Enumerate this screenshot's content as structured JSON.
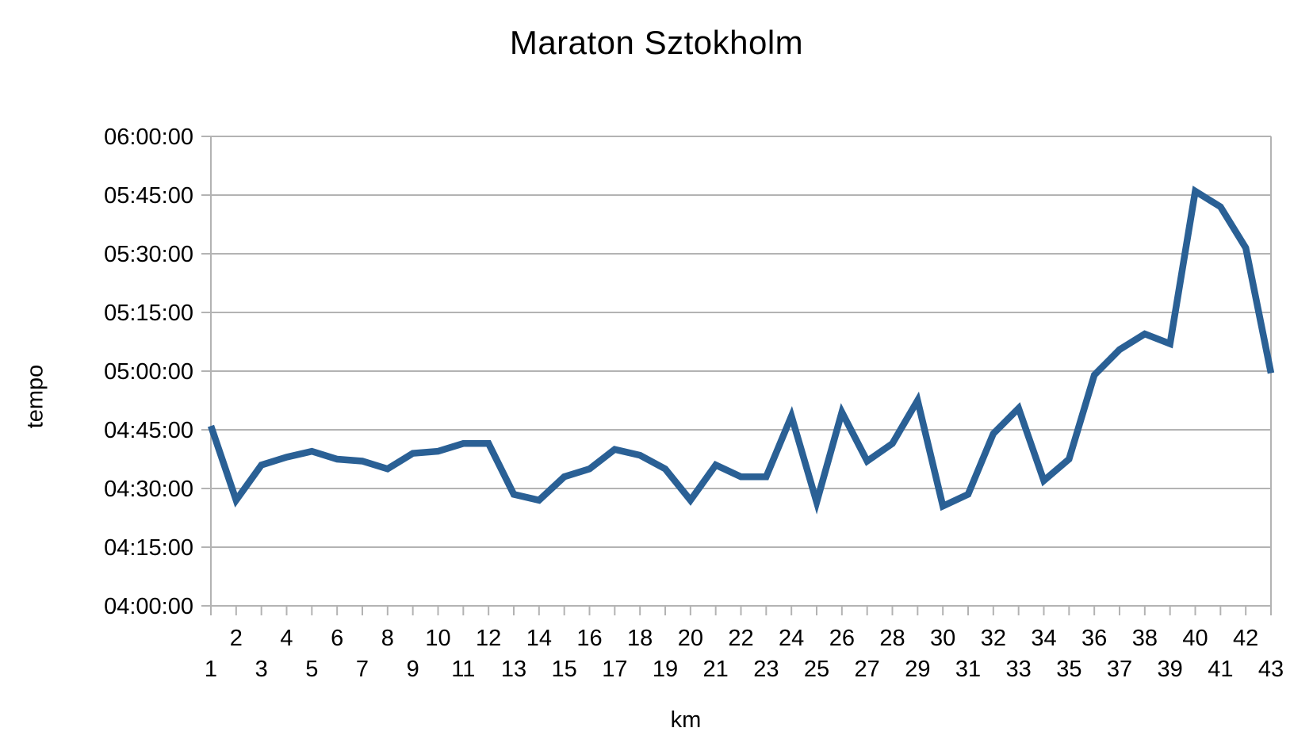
{
  "chart_data": {
    "type": "line",
    "title": "Maraton Sztokholm",
    "xlabel": "km",
    "ylabel": "tempo",
    "series": [
      {
        "name": "tempo",
        "x": [
          1,
          2,
          3,
          4,
          5,
          6,
          7,
          8,
          9,
          10,
          11,
          12,
          13,
          14,
          15,
          16,
          17,
          18,
          19,
          20,
          21,
          22,
          23,
          24,
          25,
          26,
          27,
          28,
          29,
          30,
          31,
          32,
          33,
          34,
          35,
          36,
          37,
          38,
          39,
          40,
          41,
          42,
          43
        ],
        "values": [
          "04:46:00",
          "04:27:00",
          "04:36:00",
          "04:38:00",
          "04:39:30",
          "04:37:30",
          "04:37:00",
          "04:35:00",
          "04:39:00",
          "04:39:30",
          "04:41:30",
          "04:41:30",
          "04:28:30",
          "04:27:00",
          "04:33:00",
          "04:35:00",
          "04:40:00",
          "04:38:30",
          "04:35:00",
          "04:27:00",
          "04:36:00",
          "04:33:00",
          "04:33:00",
          "04:48:30",
          "04:26:30",
          "04:49:30",
          "04:37:00",
          "04:41:30",
          "04:52:30",
          "04:25:30",
          "04:28:30",
          "04:44:00",
          "04:50:30",
          "04:32:00",
          "04:37:30",
          "04:59:00",
          "05:05:30",
          "05:09:30",
          "05:07:00",
          "05:46:00",
          "05:42:00",
          "05:31:30",
          "04:59:30"
        ]
      }
    ],
    "x_tick_labels": [
      1,
      2,
      3,
      4,
      5,
      6,
      7,
      8,
      9,
      10,
      11,
      12,
      13,
      14,
      15,
      16,
      17,
      18,
      19,
      20,
      21,
      22,
      23,
      24,
      25,
      26,
      27,
      28,
      29,
      30,
      31,
      32,
      33,
      34,
      35,
      36,
      37,
      38,
      39,
      40,
      41,
      42,
      43
    ],
    "x_labels_staggered": true,
    "y_ticks": [
      "06:00:00",
      "05:45:00",
      "05:30:00",
      "05:15:00",
      "05:00:00",
      "04:45:00",
      "04:30:00",
      "04:15:00",
      "04:00:00"
    ],
    "ylim": [
      "04:00:00",
      "06:00:00"
    ],
    "grid": true,
    "legend_position": "none",
    "line_color": "#2a6095",
    "axis_color": "#b3b3b3",
    "text_color": "#000000"
  }
}
